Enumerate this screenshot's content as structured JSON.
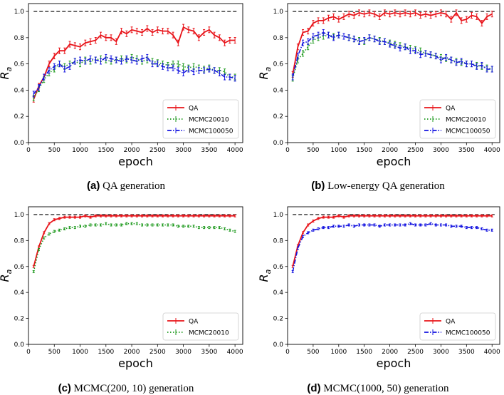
{
  "captions": [
    {
      "label": "(a)",
      "text": "QA generation"
    },
    {
      "label": "(b)",
      "text": "Low-energy QA generation"
    },
    {
      "label": "(c)",
      "text": "MCMC(200, 10) generation"
    },
    {
      "label": "(d)",
      "text": "MCMC(1000, 50) generation"
    }
  ],
  "colors": {
    "QA": "#e8141a",
    "MCMC20010": "#1f9a1f",
    "MCMC100050": "#1414e0",
    "ref": "#000000"
  },
  "chart_data": [
    {
      "type": "line",
      "xlabel": "epoch",
      "ylabel": "R",
      "ylabel_sub": "a",
      "xlim": [
        0,
        4150
      ],
      "ylim": [
        0,
        1.06
      ],
      "xticks": [
        0,
        500,
        1000,
        1500,
        2000,
        2500,
        3000,
        3500,
        4000
      ],
      "yticks": [
        0.0,
        0.2,
        0.4,
        0.6,
        0.8,
        1.0
      ],
      "reference_line": 1.0,
      "legend": [
        "QA",
        "MCMC20010",
        "MCMC100050"
      ],
      "series": [
        {
          "name": "QA",
          "style": "solid",
          "x": [
            100,
            200,
            300,
            400,
            500,
            600,
            700,
            800,
            900,
            1000,
            1100,
            1200,
            1300,
            1400,
            1500,
            1600,
            1700,
            1800,
            1900,
            2000,
            2100,
            2200,
            2300,
            2400,
            2500,
            2600,
            2700,
            2800,
            2900,
            3000,
            3100,
            3200,
            3300,
            3400,
            3500,
            3600,
            3700,
            3800,
            3900,
            4000
          ],
          "y": [
            0.33,
            0.43,
            0.5,
            0.6,
            0.66,
            0.7,
            0.7,
            0.75,
            0.74,
            0.73,
            0.76,
            0.77,
            0.78,
            0.82,
            0.8,
            0.8,
            0.77,
            0.85,
            0.83,
            0.86,
            0.85,
            0.84,
            0.87,
            0.84,
            0.86,
            0.85,
            0.85,
            0.82,
            0.76,
            0.88,
            0.86,
            0.85,
            0.8,
            0.84,
            0.86,
            0.82,
            0.8,
            0.76,
            0.78,
            0.78
          ]
        },
        {
          "name": "MCMC20010",
          "style": "dotted",
          "x": [
            100,
            200,
            300,
            400,
            500,
            600,
            700,
            800,
            900,
            1000,
            1100,
            1200,
            1300,
            1400,
            1500,
            1600,
            1700,
            1800,
            1900,
            2000,
            2100,
            2200,
            2300,
            2400,
            2500,
            2600,
            2700,
            2800,
            2900,
            3000,
            3100,
            3200,
            3300,
            3400,
            3500,
            3600,
            3700,
            3800,
            3900,
            4000
          ],
          "y": [
            0.34,
            0.41,
            0.48,
            0.53,
            0.56,
            0.6,
            0.58,
            0.6,
            0.62,
            0.6,
            0.63,
            0.62,
            0.63,
            0.64,
            0.63,
            0.62,
            0.63,
            0.64,
            0.63,
            0.65,
            0.64,
            0.62,
            0.63,
            0.62,
            0.61,
            0.6,
            0.59,
            0.6,
            0.6,
            0.58,
            0.57,
            0.58,
            0.57,
            0.56,
            0.57,
            0.55,
            0.55,
            0.54,
            0.5,
            0.5
          ]
        },
        {
          "name": "MCMC100050",
          "style": "dashdot",
          "x": [
            100,
            200,
            300,
            400,
            500,
            600,
            700,
            800,
            900,
            1000,
            1100,
            1200,
            1300,
            1400,
            1500,
            1600,
            1700,
            1800,
            1900,
            2000,
            2100,
            2200,
            2300,
            2400,
            2500,
            2600,
            2700,
            2800,
            2900,
            3000,
            3100,
            3200,
            3300,
            3400,
            3500,
            3600,
            3700,
            3800,
            3900,
            4000
          ],
          "y": [
            0.37,
            0.42,
            0.5,
            0.55,
            0.58,
            0.6,
            0.56,
            0.58,
            0.62,
            0.63,
            0.62,
            0.64,
            0.63,
            0.62,
            0.65,
            0.64,
            0.63,
            0.62,
            0.64,
            0.63,
            0.62,
            0.64,
            0.65,
            0.6,
            0.6,
            0.58,
            0.57,
            0.57,
            0.55,
            0.53,
            0.56,
            0.54,
            0.55,
            0.55,
            0.56,
            0.55,
            0.53,
            0.5,
            0.5,
            0.49
          ]
        }
      ]
    },
    {
      "type": "line",
      "xlabel": "epoch",
      "ylabel": "R",
      "ylabel_sub": "a",
      "xlim": [
        0,
        4150
      ],
      "ylim": [
        0,
        1.06
      ],
      "xticks": [
        0,
        500,
        1000,
        1500,
        2000,
        2500,
        3000,
        3500,
        4000
      ],
      "yticks": [
        0.0,
        0.2,
        0.4,
        0.6,
        0.8,
        1.0
      ],
      "reference_line": 1.0,
      "legend": [
        "QA",
        "MCMC20010",
        "MCMC100050"
      ],
      "series": [
        {
          "name": "QA",
          "style": "solid",
          "x": [
            100,
            200,
            300,
            400,
            500,
            600,
            700,
            800,
            900,
            1000,
            1100,
            1200,
            1300,
            1400,
            1500,
            1600,
            1700,
            1800,
            1900,
            2000,
            2100,
            2200,
            2300,
            2400,
            2500,
            2600,
            2700,
            2800,
            2900,
            3000,
            3100,
            3200,
            3300,
            3400,
            3500,
            3600,
            3700,
            3800,
            3900,
            4000
          ],
          "y": [
            0.52,
            0.73,
            0.84,
            0.85,
            0.91,
            0.93,
            0.93,
            0.95,
            0.96,
            0.94,
            0.96,
            0.98,
            0.97,
            0.99,
            0.98,
            0.99,
            0.98,
            0.96,
            0.99,
            0.98,
            0.99,
            0.98,
            0.99,
            0.98,
            0.99,
            0.97,
            0.98,
            0.97,
            0.98,
            0.99,
            0.98,
            0.94,
            0.99,
            0.93,
            0.94,
            0.97,
            0.96,
            0.91,
            0.96,
            0.98
          ]
        },
        {
          "name": "MCMC20010",
          "style": "dotted",
          "x": [
            100,
            200,
            300,
            400,
            500,
            600,
            700,
            800,
            900,
            1000,
            1100,
            1200,
            1300,
            1400,
            1500,
            1600,
            1700,
            1800,
            1900,
            2000,
            2100,
            2200,
            2300,
            2400,
            2500,
            2600,
            2700,
            2800,
            2900,
            3000,
            3100,
            3200,
            3300,
            3400,
            3500,
            3600,
            3700,
            3800,
            3900,
            4000
          ],
          "y": [
            0.49,
            0.63,
            0.68,
            0.73,
            0.78,
            0.8,
            0.81,
            0.82,
            0.81,
            0.82,
            0.81,
            0.8,
            0.79,
            0.78,
            0.77,
            0.8,
            0.79,
            0.78,
            0.77,
            0.76,
            0.75,
            0.74,
            0.73,
            0.72,
            0.71,
            0.7,
            0.68,
            0.67,
            0.66,
            0.65,
            0.64,
            0.63,
            0.62,
            0.61,
            0.6,
            0.6,
            0.59,
            0.58,
            0.57,
            0.56
          ]
        },
        {
          "name": "MCMC100050",
          "style": "dashdot",
          "x": [
            100,
            200,
            300,
            400,
            500,
            600,
            700,
            800,
            900,
            1000,
            1100,
            1200,
            1300,
            1400,
            1500,
            1600,
            1700,
            1800,
            1900,
            2000,
            2100,
            2200,
            2300,
            2400,
            2500,
            2600,
            2700,
            2800,
            2900,
            3000,
            3100,
            3200,
            3300,
            3400,
            3500,
            3600,
            3700,
            3800,
            3900,
            4000
          ],
          "y": [
            0.5,
            0.66,
            0.76,
            0.77,
            0.81,
            0.82,
            0.84,
            0.82,
            0.8,
            0.82,
            0.81,
            0.8,
            0.79,
            0.77,
            0.78,
            0.8,
            0.79,
            0.77,
            0.77,
            0.75,
            0.74,
            0.72,
            0.73,
            0.7,
            0.7,
            0.67,
            0.68,
            0.67,
            0.66,
            0.63,
            0.65,
            0.63,
            0.61,
            0.62,
            0.6,
            0.6,
            0.58,
            0.59,
            0.56,
            0.56
          ]
        }
      ]
    },
    {
      "type": "line",
      "xlabel": "epoch",
      "ylabel": "R",
      "ylabel_sub": "a",
      "xlim": [
        0,
        4150
      ],
      "ylim": [
        0,
        1.06
      ],
      "xticks": [
        0,
        500,
        1000,
        1500,
        2000,
        2500,
        3000,
        3500,
        4000
      ],
      "yticks": [
        0.0,
        0.2,
        0.4,
        0.6,
        0.8,
        1.0
      ],
      "reference_line": 1.0,
      "legend": [
        "QA",
        "MCMC20010"
      ],
      "series": [
        {
          "name": "QA",
          "style": "solid",
          "x": [
            100,
            200,
            300,
            400,
            500,
            600,
            700,
            800,
            900,
            1000,
            1100,
            1200,
            1300,
            1400,
            1500,
            1600,
            1700,
            1800,
            1900,
            2000,
            2100,
            2200,
            2300,
            2400,
            2500,
            2600,
            2700,
            2800,
            2900,
            3000,
            3100,
            3200,
            3300,
            3400,
            3500,
            3600,
            3700,
            3800,
            3900,
            4000
          ],
          "y": [
            0.6,
            0.75,
            0.86,
            0.93,
            0.96,
            0.97,
            0.98,
            0.98,
            0.98,
            0.98,
            0.99,
            0.98,
            0.99,
            0.99,
            0.99,
            0.99,
            0.99,
            0.99,
            0.99,
            0.99,
            0.99,
            0.99,
            0.99,
            0.99,
            0.99,
            0.99,
            0.99,
            0.99,
            0.99,
            0.99,
            0.99,
            0.99,
            0.99,
            0.99,
            0.99,
            0.99,
            0.99,
            0.99,
            0.99,
            0.99
          ]
        },
        {
          "name": "MCMC20010",
          "style": "dotted",
          "x": [
            100,
            200,
            300,
            400,
            500,
            600,
            700,
            800,
            900,
            1000,
            1100,
            1200,
            1300,
            1400,
            1500,
            1600,
            1700,
            1800,
            1900,
            2000,
            2100,
            2200,
            2300,
            2400,
            2500,
            2600,
            2700,
            2800,
            2900,
            3000,
            3100,
            3200,
            3300,
            3400,
            3500,
            3600,
            3700,
            3800,
            3900,
            4000
          ],
          "y": [
            0.56,
            0.73,
            0.82,
            0.85,
            0.87,
            0.88,
            0.89,
            0.9,
            0.9,
            0.91,
            0.91,
            0.92,
            0.92,
            0.92,
            0.93,
            0.92,
            0.92,
            0.92,
            0.93,
            0.93,
            0.93,
            0.92,
            0.92,
            0.92,
            0.92,
            0.92,
            0.92,
            0.92,
            0.91,
            0.91,
            0.91,
            0.91,
            0.9,
            0.9,
            0.9,
            0.9,
            0.9,
            0.89,
            0.88,
            0.87
          ]
        }
      ]
    },
    {
      "type": "line",
      "xlabel": "epoch",
      "ylabel": "R",
      "ylabel_sub": "a",
      "xlim": [
        0,
        4150
      ],
      "ylim": [
        0,
        1.06
      ],
      "xticks": [
        0,
        500,
        1000,
        1500,
        2000,
        2500,
        3000,
        3500,
        4000
      ],
      "yticks": [
        0.0,
        0.2,
        0.4,
        0.6,
        0.8,
        1.0
      ],
      "reference_line": 1.0,
      "legend": [
        "QA",
        "MCMC100050"
      ],
      "series": [
        {
          "name": "QA",
          "style": "solid",
          "x": [
            100,
            200,
            300,
            400,
            500,
            600,
            700,
            800,
            900,
            1000,
            1100,
            1200,
            1300,
            1400,
            1500,
            1600,
            1700,
            1800,
            1900,
            2000,
            2100,
            2200,
            2300,
            2400,
            2500,
            2600,
            2700,
            2800,
            2900,
            3000,
            3100,
            3200,
            3300,
            3400,
            3500,
            3600,
            3700,
            3800,
            3900,
            4000
          ],
          "y": [
            0.6,
            0.76,
            0.86,
            0.92,
            0.95,
            0.97,
            0.98,
            0.98,
            0.98,
            0.99,
            0.98,
            0.99,
            0.99,
            0.99,
            0.99,
            0.99,
            0.99,
            0.99,
            0.99,
            0.99,
            0.99,
            0.99,
            0.99,
            0.99,
            0.99,
            0.99,
            0.99,
            0.99,
            0.99,
            0.99,
            0.99,
            0.99,
            0.99,
            0.99,
            0.99,
            0.99,
            0.99,
            0.99,
            0.99,
            0.99
          ]
        },
        {
          "name": "MCMC100050",
          "style": "dashdot",
          "x": [
            100,
            200,
            300,
            400,
            500,
            600,
            700,
            800,
            900,
            1000,
            1100,
            1200,
            1300,
            1400,
            1500,
            1600,
            1700,
            1800,
            1900,
            2000,
            2100,
            2200,
            2300,
            2400,
            2500,
            2600,
            2700,
            2800,
            2900,
            3000,
            3100,
            3200,
            3300,
            3400,
            3500,
            3600,
            3700,
            3800,
            3900,
            4000
          ],
          "y": [
            0.56,
            0.74,
            0.83,
            0.86,
            0.88,
            0.89,
            0.9,
            0.9,
            0.91,
            0.91,
            0.91,
            0.92,
            0.91,
            0.92,
            0.92,
            0.92,
            0.92,
            0.91,
            0.92,
            0.92,
            0.92,
            0.92,
            0.92,
            0.93,
            0.92,
            0.92,
            0.92,
            0.93,
            0.92,
            0.92,
            0.92,
            0.91,
            0.91,
            0.91,
            0.9,
            0.9,
            0.9,
            0.89,
            0.88,
            0.88
          ]
        }
      ]
    }
  ]
}
